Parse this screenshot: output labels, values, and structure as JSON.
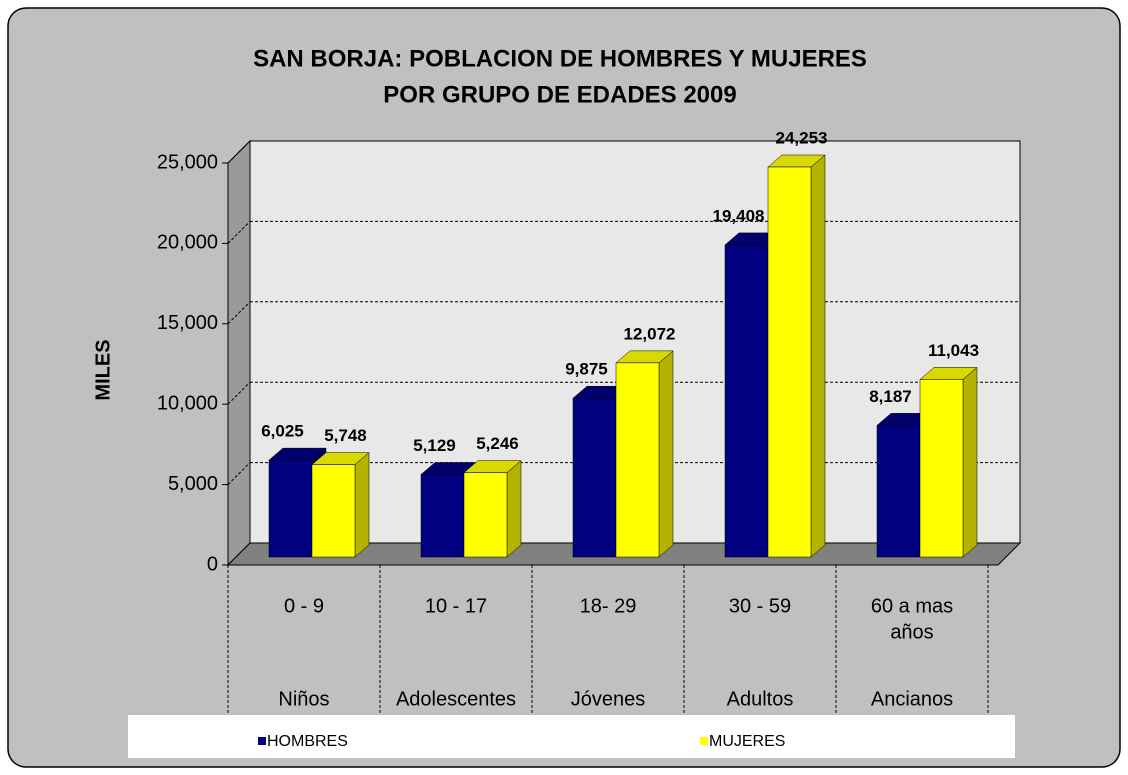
{
  "chart_data": {
    "type": "bar3d",
    "title": [
      "SAN BORJA: POBLACION DE HOMBRES Y MUJERES",
      "POR GRUPO DE EDADES 2009"
    ],
    "y_label": "MILES",
    "categories": [
      [
        "0 - 9"
      ],
      [
        "10 - 17"
      ],
      [
        "18- 29"
      ],
      [
        "30 - 59"
      ],
      [
        "60 a mas",
        "años"
      ]
    ],
    "category_groups": [
      "Niños",
      "Adolescentes",
      "Jóvenes",
      "Adultos",
      "Ancianos"
    ],
    "series": [
      {
        "name": "HOMBRES",
        "color": "#000080",
        "values": [
          6025,
          5129,
          9875,
          19408,
          8187
        ],
        "value_labels": [
          "6,025",
          "5,129",
          "9,875",
          "19,408",
          "8,187"
        ]
      },
      {
        "name": "MUJERES",
        "color": "#ffff00",
        "values": [
          5748,
          5246,
          12072,
          24253,
          11043
        ],
        "value_labels": [
          "5,748",
          "5,246",
          "12,072",
          "24,253",
          "11,043"
        ]
      }
    ],
    "ylim": [
      0,
      25000
    ],
    "yticks": [
      0,
      {
        "value": 5000,
        "label": "5,000"
      },
      {
        "value": 10000,
        "label": "10,000"
      },
      {
        "value": 15000,
        "label": "15,000"
      },
      {
        "value": 20000,
        "label": "20,000"
      },
      {
        "value": 25000,
        "label": "25,000"
      }
    ],
    "grid": true
  }
}
